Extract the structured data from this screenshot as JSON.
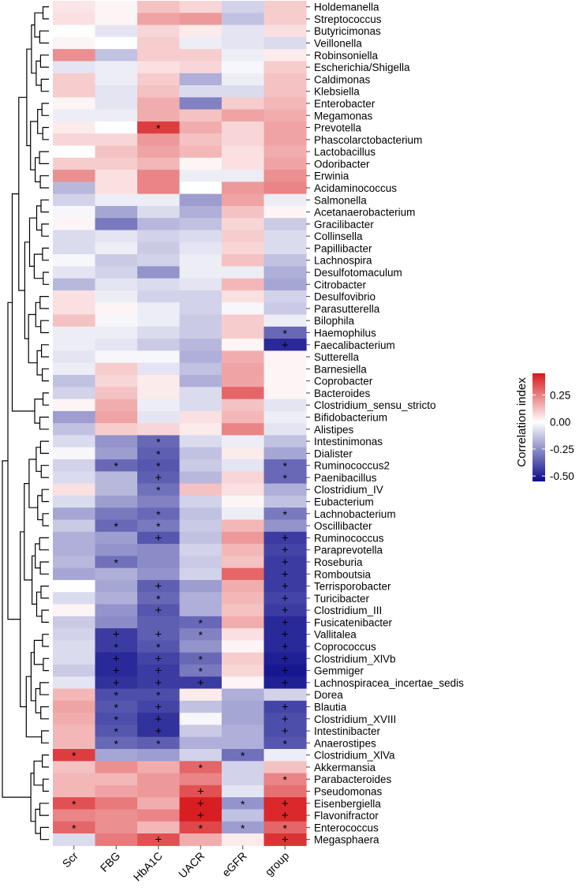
{
  "chart_data": {
    "type": "heatmap",
    "title": "",
    "columns": [
      "Scr",
      "FBG",
      "HbA1C",
      "UACR",
      "eGFR",
      "group"
    ],
    "rows": [
      "Holdemanella",
      "Streptococcus",
      "Butyricimonas",
      "Veillonella",
      "Robinsoniella",
      "Escherichia/Shigella",
      "Caldimonas",
      "Klebsiella",
      "Enterobacter",
      "Megamonas",
      "Prevotella",
      "Phascolarctobacterium",
      "Lactobacillus",
      "Odoribacter",
      "Erwinia",
      "Acidaminococcus",
      "Salmonella",
      "Acetanaerobacterium",
      "Gracilibacter",
      "Collinsella",
      "Papillibacter",
      "Lachnospira",
      "Desulfotomaculum",
      "Citrobacter",
      "Desulfovibrio",
      "Parasutterella",
      "Bilophila",
      "Haemophilus",
      "Faecalibacterium",
      "Sutterella",
      "Barnesiella",
      "Coprobacter",
      "Bacteroides",
      "Clostridium_sensu_stricto",
      "Bifidobacterium",
      "Alistipes",
      "Intestinimonas",
      "Dialister",
      "Ruminococcus2",
      "Paenibacillus",
      "Clostridium_IV",
      "Eubacterium",
      "Lachnobacterium",
      "Oscillibacter",
      "Ruminococcus",
      "Paraprevotella",
      "Roseburia",
      "Romboutsia",
      "Terrisporobacter",
      "Turicibacter",
      "Clostridium_III",
      "Fusicatenibacter",
      "Vallitalea",
      "Coprococcus",
      "Clostridium_XlVb",
      "Gemmiger",
      "Lachnospiracea_incertae_sedis",
      "Dorea",
      "Blautia",
      "Clostridium_XVIII",
      "Intestinibacter",
      "Anaerostipes",
      "Clostridium_XlVa",
      "Akkermansia",
      "Parabacteroides",
      "Pseudomonas",
      "Eisenbergiella",
      "Flavonifractor",
      "Enterococcus",
      "Megasphaera"
    ],
    "values": [
      [
        0.05,
        0.02,
        0.12,
        0.08,
        -0.1,
        0.1
      ],
      [
        0.06,
        0.02,
        0.18,
        0.2,
        -0.14,
        0.1
      ],
      [
        0.0,
        -0.06,
        0.08,
        0.04,
        -0.06,
        0.06
      ],
      [
        0.02,
        0.0,
        0.1,
        -0.04,
        -0.06,
        -0.08
      ],
      [
        0.22,
        -0.14,
        0.1,
        0.1,
        -0.04,
        0.04
      ],
      [
        -0.06,
        -0.04,
        0.06,
        0.08,
        -0.02,
        0.1
      ],
      [
        0.1,
        -0.04,
        0.1,
        -0.18,
        -0.04,
        0.12
      ],
      [
        0.1,
        -0.06,
        0.12,
        -0.08,
        -0.08,
        0.12
      ],
      [
        0.02,
        -0.06,
        0.16,
        -0.28,
        0.1,
        0.14
      ],
      [
        -0.04,
        -0.04,
        0.16,
        0.12,
        0.18,
        0.16
      ],
      [
        0.04,
        0.0,
        0.38,
        0.16,
        0.08,
        0.18
      ],
      [
        0.08,
        0.08,
        0.2,
        0.12,
        0.08,
        0.18
      ],
      [
        0.0,
        0.12,
        0.18,
        0.14,
        0.06,
        0.16
      ],
      [
        0.1,
        0.1,
        0.14,
        0.02,
        0.06,
        0.18
      ],
      [
        0.22,
        0.06,
        0.24,
        -0.04,
        -0.04,
        0.22
      ],
      [
        -0.16,
        0.06,
        0.24,
        0.0,
        0.2,
        0.24
      ],
      [
        -0.1,
        -0.04,
        -0.04,
        -0.22,
        0.18,
        -0.04
      ],
      [
        -0.02,
        -0.2,
        -0.08,
        -0.18,
        0.12,
        0.02
      ],
      [
        0.02,
        -0.3,
        -0.16,
        -0.14,
        0.08,
        -0.12
      ],
      [
        -0.08,
        -0.06,
        -0.1,
        -0.08,
        0.1,
        -0.08
      ],
      [
        -0.08,
        -0.04,
        -0.12,
        -0.06,
        0.08,
        -0.08
      ],
      [
        -0.02,
        -0.12,
        -0.1,
        -0.04,
        0.12,
        -0.14
      ],
      [
        -0.06,
        -0.1,
        -0.24,
        -0.04,
        -0.04,
        -0.18
      ],
      [
        -0.16,
        -0.06,
        -0.08,
        -0.06,
        0.14,
        -0.2
      ],
      [
        0.06,
        -0.04,
        -0.1,
        -0.1,
        0.06,
        -0.1
      ],
      [
        0.06,
        0.02,
        -0.04,
        -0.1,
        -0.02,
        -0.12
      ],
      [
        0.12,
        -0.02,
        -0.04,
        -0.12,
        0.1,
        -0.04
      ],
      [
        -0.04,
        -0.04,
        -0.08,
        -0.12,
        0.1,
        -0.34
      ],
      [
        -0.04,
        -0.06,
        -0.12,
        -0.16,
        0.02,
        -0.48
      ],
      [
        -0.06,
        -0.02,
        -0.02,
        -0.18,
        0.16,
        0.02
      ],
      [
        -0.04,
        0.1,
        -0.06,
        -0.14,
        0.18,
        0.02
      ],
      [
        -0.14,
        0.08,
        0.04,
        -0.18,
        0.18,
        0.02
      ],
      [
        -0.1,
        0.12,
        0.04,
        -0.08,
        0.3,
        0.02
      ],
      [
        0.02,
        0.16,
        -0.04,
        -0.08,
        0.12,
        -0.06
      ],
      [
        -0.22,
        0.18,
        -0.06,
        0.06,
        0.14,
        -0.04
      ],
      [
        -0.14,
        0.1,
        0.08,
        0.04,
        0.24,
        -0.06
      ],
      [
        -0.08,
        -0.24,
        -0.34,
        -0.08,
        -0.04,
        -0.14
      ],
      [
        -0.02,
        -0.22,
        -0.36,
        -0.14,
        0.04,
        -0.2
      ],
      [
        -0.1,
        -0.34,
        -0.38,
        -0.12,
        -0.06,
        -0.34
      ],
      [
        -0.08,
        -0.16,
        -0.36,
        -0.16,
        0.08,
        -0.34
      ],
      [
        0.06,
        -0.16,
        -0.32,
        0.12,
        0.06,
        -0.18
      ],
      [
        -0.08,
        -0.22,
        -0.28,
        -0.1,
        0.02,
        -0.14
      ],
      [
        -0.2,
        -0.3,
        -0.34,
        -0.14,
        -0.04,
        -0.3
      ],
      [
        -0.12,
        -0.34,
        -0.3,
        -0.12,
        0.14,
        -0.24
      ],
      [
        -0.18,
        -0.22,
        -0.38,
        -0.14,
        0.2,
        -0.44
      ],
      [
        -0.18,
        -0.24,
        -0.26,
        -0.1,
        0.14,
        -0.42
      ],
      [
        -0.16,
        -0.32,
        -0.26,
        -0.12,
        0.12,
        -0.44
      ],
      [
        -0.2,
        -0.18,
        -0.24,
        -0.1,
        0.3,
        -0.44
      ],
      [
        0.0,
        -0.2,
        -0.36,
        -0.22,
        0.16,
        -0.44
      ],
      [
        -0.08,
        -0.18,
        -0.34,
        -0.18,
        0.14,
        -0.42
      ],
      [
        0.02,
        -0.24,
        -0.38,
        -0.18,
        0.12,
        -0.44
      ],
      [
        -0.12,
        -0.26,
        -0.36,
        -0.34,
        0.16,
        -0.48
      ],
      [
        -0.1,
        -0.44,
        -0.36,
        -0.28,
        0.06,
        -0.48
      ],
      [
        -0.08,
        -0.44,
        -0.38,
        -0.24,
        0.02,
        -0.48
      ],
      [
        -0.08,
        -0.48,
        -0.42,
        -0.34,
        0.1,
        -0.5
      ],
      [
        -0.12,
        -0.48,
        -0.44,
        -0.3,
        0.08,
        -0.52
      ],
      [
        -0.06,
        -0.46,
        -0.44,
        -0.44,
        0.02,
        -0.5
      ],
      [
        0.14,
        -0.4,
        -0.4,
        0.04,
        -0.18,
        -0.1
      ],
      [
        0.18,
        -0.38,
        -0.42,
        -0.14,
        -0.2,
        -0.42
      ],
      [
        0.16,
        -0.4,
        -0.46,
        -0.02,
        -0.2,
        -0.4
      ],
      [
        0.14,
        -0.38,
        -0.46,
        -0.12,
        -0.18,
        -0.4
      ],
      [
        0.14,
        -0.34,
        -0.36,
        -0.18,
        -0.18,
        -0.38
      ],
      [
        0.38,
        -0.2,
        -0.22,
        -0.1,
        -0.32,
        -0.04
      ],
      [
        0.12,
        0.22,
        0.16,
        0.3,
        -0.1,
        0.12
      ],
      [
        0.14,
        0.14,
        0.2,
        0.24,
        -0.1,
        0.24
      ],
      [
        0.14,
        0.18,
        0.2,
        0.34,
        -0.06,
        0.28
      ],
      [
        0.34,
        0.26,
        0.16,
        0.44,
        -0.24,
        0.42
      ],
      [
        0.24,
        0.22,
        0.24,
        0.44,
        -0.14,
        0.42
      ],
      [
        0.3,
        0.22,
        0.14,
        0.36,
        -0.22,
        0.3
      ],
      [
        -0.08,
        0.26,
        0.34,
        0.16,
        0.04,
        0.4
      ]
    ],
    "significance": [
      [
        "",
        "",
        "",
        "",
        "",
        ""
      ],
      [
        "",
        "",
        "",
        "",
        "",
        ""
      ],
      [
        "",
        "",
        "",
        "",
        "",
        ""
      ],
      [
        "",
        "",
        "",
        "",
        "",
        ""
      ],
      [
        "",
        "",
        "",
        "",
        "",
        ""
      ],
      [
        "",
        "",
        "",
        "",
        "",
        ""
      ],
      [
        "",
        "",
        "",
        "",
        "",
        ""
      ],
      [
        "",
        "",
        "",
        "",
        "",
        ""
      ],
      [
        "",
        "",
        "",
        "",
        "",
        ""
      ],
      [
        "",
        "",
        "",
        "",
        "",
        ""
      ],
      [
        "",
        "",
        "*",
        "",
        "",
        ""
      ],
      [
        "",
        "",
        "",
        "",
        "",
        ""
      ],
      [
        "",
        "",
        "",
        "",
        "",
        ""
      ],
      [
        "",
        "",
        "",
        "",
        "",
        ""
      ],
      [
        "",
        "",
        "",
        "",
        "",
        ""
      ],
      [
        "",
        "",
        "",
        "",
        "",
        ""
      ],
      [
        "",
        "",
        "",
        "",
        "",
        ""
      ],
      [
        "",
        "",
        "",
        "",
        "",
        ""
      ],
      [
        "",
        "",
        "",
        "",
        "",
        ""
      ],
      [
        "",
        "",
        "",
        "",
        "",
        ""
      ],
      [
        "",
        "",
        "",
        "",
        "",
        ""
      ],
      [
        "",
        "",
        "",
        "",
        "",
        ""
      ],
      [
        "",
        "",
        "",
        "",
        "",
        ""
      ],
      [
        "",
        "",
        "",
        "",
        "",
        ""
      ],
      [
        "",
        "",
        "",
        "",
        "",
        ""
      ],
      [
        "",
        "",
        "",
        "",
        "",
        ""
      ],
      [
        "",
        "",
        "",
        "",
        "",
        ""
      ],
      [
        "",
        "",
        "",
        "",
        "",
        "*"
      ],
      [
        "",
        "",
        "",
        "",
        "",
        "+"
      ],
      [
        "",
        "",
        "",
        "",
        "",
        ""
      ],
      [
        "",
        "",
        "",
        "",
        "",
        ""
      ],
      [
        "",
        "",
        "",
        "",
        "",
        ""
      ],
      [
        "",
        "",
        "",
        "",
        "",
        ""
      ],
      [
        "",
        "",
        "",
        "",
        "",
        ""
      ],
      [
        "",
        "",
        "",
        "",
        "",
        ""
      ],
      [
        "",
        "",
        "",
        "",
        "",
        ""
      ],
      [
        "",
        "",
        "*",
        "",
        "",
        ""
      ],
      [
        "",
        "",
        "*",
        "",
        "",
        ""
      ],
      [
        "",
        "*",
        "*",
        "",
        "",
        "*"
      ],
      [
        "",
        "",
        "+",
        "",
        "",
        "*"
      ],
      [
        "",
        "",
        "*",
        "",
        "",
        ""
      ],
      [
        "",
        "",
        "",
        "",
        "",
        ""
      ],
      [
        "",
        "",
        "*",
        "",
        "",
        "*"
      ],
      [
        "",
        "*",
        "*",
        "",
        "",
        ""
      ],
      [
        "",
        "",
        "+",
        "",
        "",
        "+"
      ],
      [
        "",
        "",
        "",
        "",
        "",
        "+"
      ],
      [
        "",
        "*",
        "",
        "",
        "",
        "+"
      ],
      [
        "",
        "",
        "",
        "",
        "",
        "+"
      ],
      [
        "",
        "",
        "+",
        "",
        "",
        "+"
      ],
      [
        "",
        "",
        "*",
        "",
        "",
        "+"
      ],
      [
        "",
        "",
        "+",
        "",
        "",
        "+"
      ],
      [
        "",
        "",
        "",
        "*",
        "",
        "+"
      ],
      [
        "",
        "+",
        "+",
        "*",
        "",
        "+"
      ],
      [
        "",
        "*",
        "*",
        "",
        "",
        "+"
      ],
      [
        "",
        "+",
        "+",
        "*",
        "",
        "+"
      ],
      [
        "",
        "+",
        "+",
        "*",
        "",
        "+"
      ],
      [
        "",
        "+",
        "+",
        "+",
        "",
        "+"
      ],
      [
        "",
        "*",
        "*",
        "",
        "",
        ""
      ],
      [
        "",
        "*",
        "+",
        "",
        "",
        "+"
      ],
      [
        "",
        "*",
        "+",
        "",
        "",
        "+"
      ],
      [
        "",
        "*",
        "+",
        "",
        "",
        "+"
      ],
      [
        "",
        "*",
        "*",
        "",
        "",
        "*"
      ],
      [
        "*",
        "",
        "",
        "",
        "*",
        ""
      ],
      [
        "",
        "",
        "",
        "*",
        "",
        ""
      ],
      [
        "",
        "",
        "",
        "",
        "",
        "*"
      ],
      [
        "",
        "",
        "",
        "+",
        "",
        ""
      ],
      [
        "*",
        "",
        "",
        "+",
        "*",
        "+"
      ],
      [
        "",
        "",
        "",
        "+",
        "",
        "+"
      ],
      [
        "*",
        "",
        "",
        "*",
        "*",
        "*"
      ],
      [
        "",
        "",
        "+",
        "",
        "",
        "+"
      ]
    ],
    "legend": {
      "title": "Correlation index",
      "ticks": [
        "0.25",
        "0.00",
        "-0.25",
        "-0.50"
      ],
      "tick_values": [
        0.25,
        0.0,
        -0.25,
        -0.5
      ],
      "range": [
        -0.55,
        0.45
      ],
      "placement": "right"
    },
    "color_scale": {
      "low": "#0a0a8a",
      "mid": "#ffffff",
      "high": "#d7191c"
    },
    "dendrogram": "left",
    "xlabel": "",
    "ylabel": ""
  }
}
